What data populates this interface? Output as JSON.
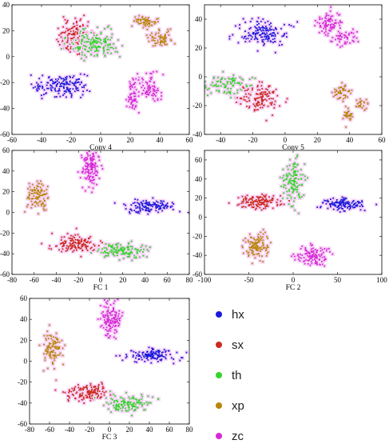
{
  "legend": [
    {
      "key": "hx",
      "label": "hx",
      "color": "#1a1adb"
    },
    {
      "key": "sx",
      "label": "sx",
      "color": "#cc2a1e"
    },
    {
      "key": "th",
      "label": "th",
      "color": "#35d42d"
    },
    {
      "key": "xp",
      "label": "xp",
      "color": "#b8860b"
    },
    {
      "key": "zc",
      "label": "zc",
      "color": "#d62ad6"
    }
  ],
  "chart_data": [
    {
      "type": "scatter",
      "title": "Conv 4",
      "xlim": [
        -60,
        60
      ],
      "ylim": [
        -60,
        40
      ],
      "xticks": [
        -60,
        -40,
        -20,
        0,
        20,
        40,
        60
      ],
      "yticks": [
        -60,
        -40,
        -20,
        0,
        20,
        40
      ],
      "clusters": [
        {
          "series": "hx",
          "cx": -27,
          "cy": -22,
          "sx": 9,
          "sy": 4,
          "n": 170
        },
        {
          "series": "sx",
          "cx": -17,
          "cy": 15,
          "sx": 6,
          "sy": 6,
          "n": 170
        },
        {
          "series": "th",
          "cx": -4,
          "cy": 10,
          "sx": 8,
          "sy": 5,
          "n": 170
        },
        {
          "series": "xp",
          "cx": 30,
          "cy": 27,
          "sx": 4,
          "sy": 2,
          "n": 60
        },
        {
          "series": "xp",
          "cx": 41,
          "cy": 14,
          "sx": 5,
          "sy": 3,
          "n": 70
        },
        {
          "series": "zc",
          "cx": 22,
          "cy": -30,
          "sx": 2,
          "sy": 7,
          "n": 70
        },
        {
          "series": "zc",
          "cx": 33,
          "cy": -24,
          "sx": 4,
          "sy": 5,
          "n": 80
        }
      ]
    },
    {
      "type": "scatter",
      "title": "Conv 5",
      "xlim": [
        -50,
        60
      ],
      "ylim": [
        -40,
        50
      ],
      "xticks": [
        -40,
        -20,
        0,
        20,
        40,
        60
      ],
      "yticks": [
        -40,
        -20,
        0,
        20,
        40
      ],
      "clusters": [
        {
          "series": "hx",
          "cx": -13,
          "cy": 30,
          "sx": 7,
          "sy": 5,
          "n": 160
        },
        {
          "series": "th",
          "cx": -35,
          "cy": -6,
          "sx": 7,
          "sy": 4,
          "n": 110
        },
        {
          "series": "sx",
          "cx": -14,
          "cy": -15,
          "sx": 7,
          "sy": 5,
          "n": 130
        },
        {
          "series": "zc",
          "cx": 27,
          "cy": 37,
          "sx": 4,
          "sy": 4,
          "n": 90
        },
        {
          "series": "zc",
          "cx": 37,
          "cy": 26,
          "sx": 4,
          "sy": 3,
          "n": 50
        },
        {
          "series": "xp",
          "cx": 34,
          "cy": -11,
          "sx": 3,
          "sy": 3,
          "n": 50
        },
        {
          "series": "xp",
          "cx": 39,
          "cy": -26,
          "sx": 2,
          "sy": 3,
          "n": 30
        },
        {
          "series": "xp",
          "cx": 48,
          "cy": -20,
          "sx": 2,
          "sy": 2,
          "n": 25
        }
      ]
    },
    {
      "type": "scatter",
      "title": "FC 1",
      "xlim": [
        -80,
        80
      ],
      "ylim": [
        -60,
        60
      ],
      "xticks": [
        -80,
        -60,
        -40,
        -20,
        0,
        20,
        40,
        60,
        80
      ],
      "yticks": [
        -60,
        -40,
        -20,
        0,
        20,
        40,
        60
      ],
      "clusters": [
        {
          "series": "zc",
          "cx": -9,
          "cy": 42,
          "sx": 4,
          "sy": 8,
          "n": 140
        },
        {
          "series": "xp",
          "cx": -57,
          "cy": 16,
          "sx": 5,
          "sy": 8,
          "n": 110
        },
        {
          "series": "hx",
          "cx": 45,
          "cy": 6,
          "sx": 11,
          "sy": 3,
          "n": 140
        },
        {
          "series": "sx",
          "cx": -22,
          "cy": -30,
          "sx": 10,
          "sy": 4,
          "n": 140
        },
        {
          "series": "th",
          "cx": 20,
          "cy": -37,
          "sx": 11,
          "sy": 4,
          "n": 140
        }
      ]
    },
    {
      "type": "scatter",
      "title": "FC 2",
      "xlim": [
        -100,
        100
      ],
      "ylim": [
        -60,
        70
      ],
      "xticks": [
        -100,
        -50,
        0,
        50,
        100
      ],
      "yticks": [
        -60,
        -40,
        -20,
        0,
        20,
        40,
        60
      ],
      "clusters": [
        {
          "series": "th",
          "cx": 0,
          "cy": 38,
          "sx": 6,
          "sy": 12,
          "n": 140
        },
        {
          "series": "sx",
          "cx": -40,
          "cy": 16,
          "sx": 11,
          "sy": 4,
          "n": 140
        },
        {
          "series": "hx",
          "cx": 57,
          "cy": 13,
          "sx": 12,
          "sy": 3,
          "n": 140
        },
        {
          "series": "xp",
          "cx": -41,
          "cy": -30,
          "sx": 7,
          "sy": 6,
          "n": 130
        },
        {
          "series": "zc",
          "cx": 22,
          "cy": -40,
          "sx": 9,
          "sy": 5,
          "n": 130
        }
      ]
    },
    {
      "type": "scatter",
      "title": "FC 3",
      "xlim": [
        -80,
        80
      ],
      "ylim": [
        -60,
        60
      ],
      "xticks": [
        -80,
        -60,
        -40,
        -20,
        0,
        20,
        40,
        60,
        80
      ],
      "yticks": [
        -60,
        -40,
        -20,
        0,
        20,
        40,
        60
      ],
      "clusters": [
        {
          "series": "zc",
          "cx": 2,
          "cy": 41,
          "sx": 5,
          "sy": 8,
          "n": 140
        },
        {
          "series": "xp",
          "cx": -57,
          "cy": 12,
          "sx": 5,
          "sy": 8,
          "n": 110
        },
        {
          "series": "hx",
          "cx": 42,
          "cy": 6,
          "sx": 12,
          "sy": 3,
          "n": 140
        },
        {
          "series": "sx",
          "cx": -22,
          "cy": -30,
          "sx": 10,
          "sy": 4,
          "n": 140
        },
        {
          "series": "th",
          "cx": 18,
          "cy": -40,
          "sx": 11,
          "sy": 4,
          "n": 140
        }
      ]
    }
  ]
}
